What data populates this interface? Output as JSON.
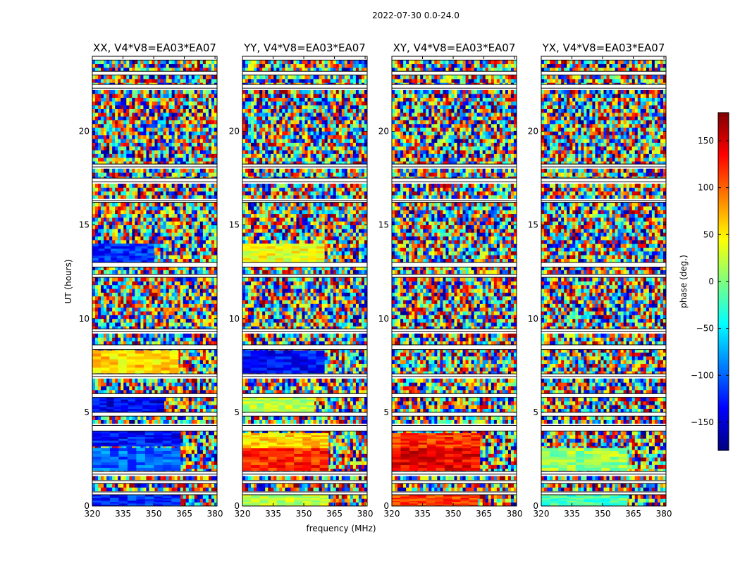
{
  "figure": {
    "suptitle": "2022-07-30 0.0-24.0",
    "xlabel": "frequency (MHz)",
    "ylabel": "UT (hours)",
    "colorbar_label": "phase (deg.)"
  },
  "chart_data": {
    "type": "heatmap",
    "title": "2022-07-30 0.0-24.0",
    "xlabel": "frequency (MHz)",
    "ylabel": "UT (hours)",
    "xlim": [
      320,
      381
    ],
    "ylim": [
      0,
      24
    ],
    "x_ticks": [
      320,
      335,
      350,
      365,
      380
    ],
    "y_ticks": [
      0,
      5,
      10,
      15,
      20
    ],
    "colorbar": {
      "label": "phase (deg.)",
      "range": [
        -180,
        180
      ],
      "ticks": [
        -150,
        -100,
        -50,
        0,
        50,
        100,
        150
      ],
      "colormap": "jet",
      "colors": [
        "#00007f",
        "#0000ff",
        "#007fff",
        "#00ffff",
        "#7fff7f",
        "#ffff00",
        "#ff7f00",
        "#ff0000",
        "#7f0000"
      ]
    },
    "panels": [
      {
        "title": "XX, V4*V8=EA03*EA07"
      },
      {
        "title": "YY, V4*V8=EA03*EA07"
      },
      {
        "title": "XY, V4*V8=EA03*EA07"
      },
      {
        "title": "YX, V4*V8=EA03*EA07"
      }
    ],
    "gaps_hours": [
      [
        0.6,
        0.75
      ],
      [
        1.2,
        1.35
      ],
      [
        1.7,
        1.85
      ],
      [
        4.0,
        4.3
      ],
      [
        4.8,
        5.0
      ],
      [
        5.8,
        6.0
      ],
      [
        6.9,
        7.05
      ],
      [
        8.35,
        8.6
      ],
      [
        9.3,
        9.45
      ],
      [
        12.2,
        12.35
      ],
      [
        12.75,
        13.0
      ],
      [
        16.2,
        16.3
      ],
      [
        17.3,
        17.5
      ],
      [
        18.1,
        18.25
      ],
      [
        22.3,
        22.5
      ],
      [
        23.0,
        23.2
      ],
      [
        23.8,
        24.0
      ]
    ],
    "coherent_regions": [
      {
        "panel": 0,
        "t": [
          0.0,
          0.6
        ],
        "f": [
          320,
          363
        ],
        "phase": -120
      },
      {
        "panel": 0,
        "t": [
          1.9,
          3.1
        ],
        "f": [
          320,
          363
        ],
        "phase": -100
      },
      {
        "panel": 0,
        "t": [
          3.2,
          4.0
        ],
        "f": [
          320,
          363
        ],
        "phase": -130
      },
      {
        "panel": 0,
        "t": [
          5.0,
          5.8
        ],
        "f": [
          320,
          355
        ],
        "phase": -140
      },
      {
        "panel": 0,
        "t": [
          7.1,
          8.3
        ],
        "f": [
          320,
          362
        ],
        "phase": 60
      },
      {
        "panel": 0,
        "t": [
          13.0,
          14.0
        ],
        "f": [
          320,
          350
        ],
        "phase": -120
      },
      {
        "panel": 1,
        "t": [
          0.0,
          0.6
        ],
        "f": [
          320,
          362
        ],
        "phase": 20
      },
      {
        "panel": 1,
        "t": [
          1.9,
          3.1
        ],
        "f": [
          320,
          362
        ],
        "phase": 120
      },
      {
        "panel": 1,
        "t": [
          3.1,
          3.9
        ],
        "f": [
          320,
          362
        ],
        "phase": 60
      },
      {
        "panel": 1,
        "t": [
          5.0,
          5.8
        ],
        "f": [
          320,
          355
        ],
        "phase": 20
      },
      {
        "panel": 1,
        "t": [
          7.1,
          8.3
        ],
        "f": [
          320,
          360
        ],
        "phase": -130
      },
      {
        "panel": 1,
        "t": [
          13.0,
          14.0
        ],
        "f": [
          320,
          360
        ],
        "phase": 40
      },
      {
        "panel": 2,
        "t": [
          1.9,
          3.1
        ],
        "f": [
          320,
          363
        ],
        "phase": 140
      },
      {
        "panel": 2,
        "t": [
          3.1,
          3.9
        ],
        "f": [
          320,
          363
        ],
        "phase": 120
      },
      {
        "panel": 2,
        "t": [
          0.0,
          0.6
        ],
        "f": [
          320,
          362
        ],
        "phase": 110
      },
      {
        "panel": 3,
        "t": [
          1.9,
          3.1
        ],
        "f": [
          320,
          362
        ],
        "phase": 10
      },
      {
        "panel": 3,
        "t": [
          0.0,
          0.6
        ],
        "f": [
          320,
          362
        ],
        "phase": -20
      }
    ]
  }
}
